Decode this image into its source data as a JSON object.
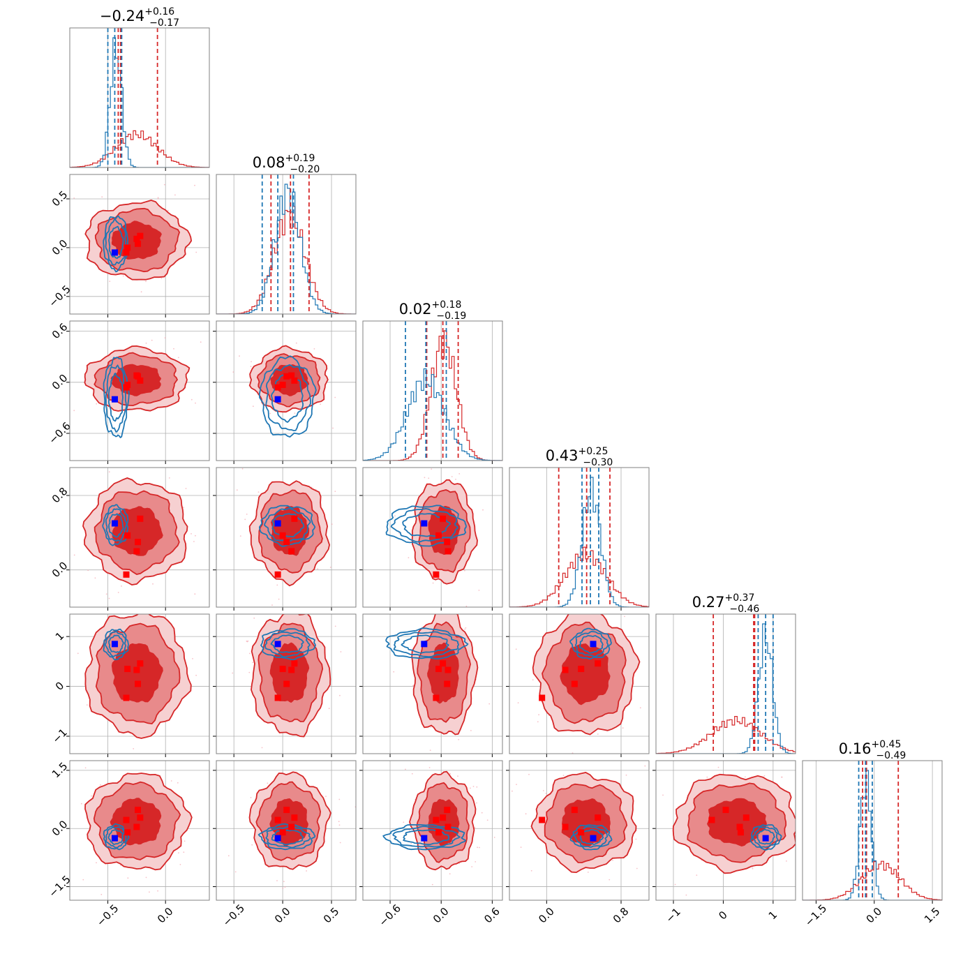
{
  "chart_data": {
    "type": "corner",
    "n_params": 6,
    "titles": [
      {
        "value": "0.24",
        "sign": "−",
        "plus": "+0.16",
        "minus": "−0.17"
      },
      {
        "value": "0.08",
        "sign": "",
        "plus": "+0.19",
        "minus": "−0.20"
      },
      {
        "value": "0.02",
        "sign": "",
        "plus": "+0.18",
        "minus": "−0.19"
      },
      {
        "value": "0.43",
        "sign": "",
        "plus": "+0.25",
        "minus": "−0.30"
      },
      {
        "value": "0.27",
        "sign": "",
        "plus": "+0.37",
        "minus": "−0.46"
      },
      {
        "value": "0.16",
        "sign": "",
        "plus": "+0.45",
        "minus": "−0.49"
      }
    ],
    "ranges": [
      [
        -0.83,
        0.38
      ],
      [
        -0.68,
        0.75
      ],
      [
        -0.92,
        0.72
      ],
      [
        -0.4,
        1.1
      ],
      [
        -1.35,
        1.45
      ],
      [
        -1.85,
        1.75
      ]
    ],
    "ticks": [
      {
        "values": [
          -0.5,
          0.0
        ],
        "labels": [
          "−0.5",
          "0.0"
        ]
      },
      {
        "values": [
          -0.5,
          0.0,
          0.5
        ],
        "labels": [
          "−0.5",
          "0.0",
          "0.5"
        ]
      },
      {
        "values": [
          -0.6,
          0.0,
          0.6
        ],
        "labels": [
          "−0.6",
          "0.0",
          "0.6"
        ]
      },
      {
        "values": [
          0.0,
          0.8
        ],
        "labels": [
          "0.0",
          "0.8"
        ]
      },
      {
        "values": [
          -1,
          0,
          1
        ],
        "labels": [
          "−1",
          "0",
          "1"
        ]
      },
      {
        "values": [
          -1.5,
          0.0,
          1.5
        ],
        "labels": [
          "−1.5",
          "0.0",
          "1.5"
        ]
      }
    ],
    "colors": {
      "red": "#d62728",
      "red_mid": "#e88a8b",
      "red_light": "#f6d0d1",
      "blue": "#1f77b4",
      "grid": "#b0b0b0",
      "square_red": "#ff0000",
      "square_blue": "#0000ff"
    },
    "series": [
      {
        "color": "red",
        "means": [
          -0.25,
          0.07,
          0.03,
          0.42,
          0.26,
          0.17
        ],
        "sigmas": [
          0.18,
          0.16,
          0.15,
          0.22,
          0.5,
          0.5
        ],
        "quantiles": [
          [
            -0.41,
            -0.07
          ],
          [
            -0.12,
            0.27
          ],
          [
            -0.17,
            0.2
          ],
          [
            0.13,
            0.68
          ],
          [
            -0.2,
            0.63
          ],
          [
            -0.3,
            0.62
          ]
        ]
      },
      {
        "color": "blue",
        "means": [
          -0.43,
          0.05,
          -0.18,
          0.48,
          0.85,
          -0.22
        ],
        "sigmas": [
          0.05,
          0.13,
          0.22,
          0.1,
          0.14,
          0.15
        ],
        "quantiles": [
          [
            -0.5,
            -0.38
          ],
          [
            -0.21,
            0.11
          ],
          [
            -0.42,
            0.06
          ],
          [
            0.38,
            0.56
          ],
          [
            0.7,
            1.0
          ],
          [
            -0.4,
            -0.05
          ]
        ]
      }
    ],
    "red_center_quantile": [
      -0.39,
      0.08,
      0.02,
      0.43,
      0.61,
      -0.2
    ],
    "markers": {
      "blue": [
        -0.44,
        -0.05,
        -0.2,
        0.5,
        0.85,
        -0.25
      ],
      "red": [
        [
          -0.22,
          0.12,
          0.02,
          0.55,
          0.46,
          0.28
        ],
        [
          -0.24,
          0.04,
          0.07,
          0.3,
          0.05,
          0.48
        ],
        [
          -0.34,
          -0.05,
          -0.06,
          -0.05,
          -0.23,
          0.22
        ],
        [
          -0.25,
          0.09,
          0.08,
          0.2,
          0.33,
          0.04
        ],
        [
          -0.33,
          0.0,
          -0.03,
          0.37,
          0.35,
          -0.1
        ]
      ]
    }
  }
}
